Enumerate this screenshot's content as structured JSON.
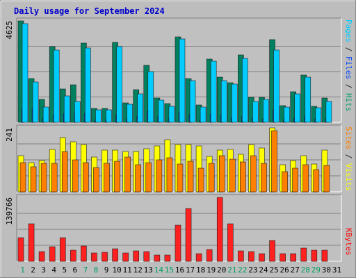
{
  "chart_data": {
    "type": "bar",
    "title": "Daily usage for September 2024",
    "categories": [
      "1",
      "2",
      "3",
      "4",
      "5",
      "6",
      "7",
      "8",
      "9",
      "10",
      "11",
      "12",
      "13",
      "14",
      "15",
      "16",
      "17",
      "18",
      "19",
      "20",
      "21",
      "22",
      "23",
      "24",
      "25",
      "26",
      "27",
      "28",
      "29",
      "30",
      "31"
    ],
    "weekend_days": [
      1,
      7,
      8,
      14,
      15,
      21,
      22,
      28,
      29
    ],
    "panels": [
      {
        "id": "hits",
        "max_label": "4625",
        "ymax": 4625,
        "legend": [
          "Pages",
          " / ",
          "Files",
          " / ",
          "Hits"
        ],
        "legend_colors": [
          "#00ccff",
          "#202020",
          "#0044ff",
          "#202020",
          "#00a070"
        ],
        "series": [
          {
            "name": "Hits",
            "color": "#00805f",
            "values": [
              4625,
              2000,
              1030,
              3440,
              1520,
              1700,
              3610,
              640,
              640,
              3630,
              880,
              1500,
              2600,
              1110,
              840,
              3910,
              2000,
              790,
              2890,
              2050,
              1810,
              3070,
              1150,
              1150,
              3760,
              760,
              1390,
              2150,
              720,
              1110,
              0
            ]
          },
          {
            "name": "Files",
            "color": "#0044ff",
            "values": [
              600,
              620,
              200,
              350,
              420,
              420,
              420,
              120,
              120,
              360,
              170,
              300,
              520,
              240,
              160,
              450,
              350,
              120,
              370,
              330,
              220,
              240,
              200,
              170,
              580,
              140,
              200,
              290,
              150,
              150,
              0
            ]
          },
          {
            "name": "Pages",
            "color": "#00ccff",
            "values": [
              4500,
              1850,
              700,
              3300,
              1200,
              950,
              3400,
              580,
              560,
              3450,
              820,
              1300,
              2300,
              1000,
              730,
              3800,
              1900,
              700,
              2800,
              1900,
              1750,
              2900,
              950,
              1050,
              3300,
              700,
              1300,
              2050,
              670,
              950,
              0
            ]
          }
        ]
      },
      {
        "id": "visits",
        "max_label": "241",
        "ymax": 241,
        "legend": [
          "Sites",
          " / ",
          "Visits"
        ],
        "legend_colors": [
          "#ff8000",
          "#202020",
          "#ffff00"
        ],
        "series": [
          {
            "name": "Visits",
            "color": "#ffff00",
            "values": [
              135,
              111,
              117,
              160,
              205,
              188,
              178,
              130,
              156,
              158,
              152,
              152,
              163,
              173,
              196,
              178,
              177,
              173,
              134,
              158,
              161,
              141,
              179,
              166,
              241,
              101,
              117,
              137,
              105,
              156,
              0
            ]
          },
          {
            "name": "Sites",
            "color": "#ff8000",
            "values": [
              111,
              93,
              107,
              108,
              151,
              121,
              111,
              92,
              108,
              116,
              130,
              103,
              110,
              120,
              129,
              105,
              114,
              88,
              108,
              135,
              123,
              112,
              135,
              107,
              231,
              75,
              88,
              101,
              85,
              99,
              0
            ]
          }
        ]
      },
      {
        "id": "kbytes",
        "max_label": "139766",
        "ymax": 139766,
        "legend": [
          "KBytes"
        ],
        "legend_colors": [
          "#ff0000"
        ],
        "series": [
          {
            "name": "KBytes",
            "color": "#ff2020",
            "values": [
              51000,
              82500,
              21000,
              32000,
              51000,
              24000,
              34000,
              18000,
              19000,
              28000,
              18000,
              23000,
              21000,
              14000,
              14000,
              79000,
              116000,
              16000,
              26000,
              139766,
              82000,
              23000,
              21000,
              16000,
              45000,
              17000,
              17000,
              29000,
              25000,
              25000,
              0
            ]
          }
        ]
      }
    ]
  }
}
